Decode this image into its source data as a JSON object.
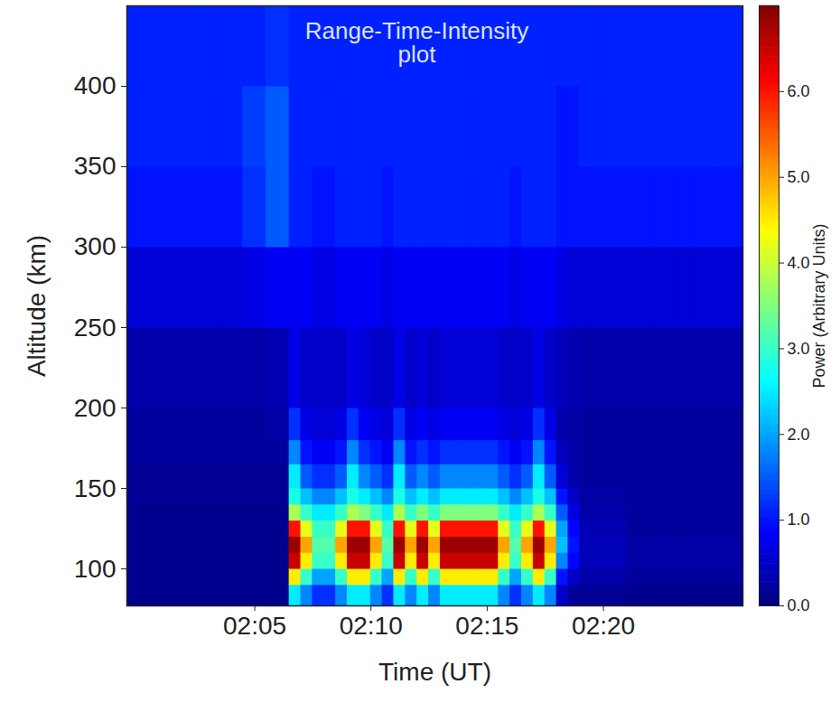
{
  "chart_data": {
    "type": "heatmap",
    "annotation": "Range-Time-Intensity\nplot",
    "x_label": "Time (UT)",
    "y_label": "Altitude (km)",
    "xlim": [
      119.5,
      146
    ],
    "xticks": [
      {
        "value": 125,
        "label": "02:05"
      },
      {
        "value": 130,
        "label": "02:10"
      },
      {
        "value": 135,
        "label": "02:15"
      },
      {
        "value": 140,
        "label": "02:20"
      }
    ],
    "ylim": [
      77,
      450
    ],
    "yticks": [
      100,
      150,
      200,
      250,
      300,
      350,
      400
    ],
    "cells": {
      "x_bins": [
        119.5,
        120.5,
        121.5,
        122.5,
        123.5,
        124.5,
        125.5,
        126.5,
        127,
        127.5,
        128,
        128.5,
        129,
        129.5,
        130,
        130.5,
        131,
        131.5,
        132,
        132.5,
        133,
        133.5,
        134,
        134.5,
        135,
        135.5,
        136,
        136.5,
        137,
        137.5,
        138,
        138.5,
        139,
        140,
        141,
        142,
        143,
        144,
        145,
        146
      ],
      "y_bins": [
        77,
        90,
        100,
        110,
        120,
        130,
        140,
        150,
        165,
        180,
        200,
        250,
        300,
        350,
        400,
        450
      ],
      "values": [
        [
          0.1,
          0.1,
          0.1,
          0.1,
          0.1,
          0.1,
          0.15,
          0.15,
          0.2,
          0.2,
          0.3,
          0.6,
          1.0,
          1.1,
          1.1
        ],
        [
          0.1,
          0.1,
          0.1,
          0.1,
          0.1,
          0.1,
          0.15,
          0.15,
          0.2,
          0.2,
          0.3,
          0.6,
          1.0,
          1.1,
          1.1
        ],
        [
          0.1,
          0.1,
          0.1,
          0.1,
          0.1,
          0.1,
          0.15,
          0.15,
          0.2,
          0.2,
          0.3,
          0.6,
          1.0,
          1.1,
          1.1
        ],
        [
          0.1,
          0.1,
          0.1,
          0.1,
          0.1,
          0.1,
          0.15,
          0.15,
          0.2,
          0.2,
          0.3,
          0.6,
          1.0,
          1.1,
          1.1
        ],
        [
          0.1,
          0.1,
          0.1,
          0.1,
          0.1,
          0.1,
          0.15,
          0.15,
          0.2,
          0.2,
          0.3,
          0.6,
          1.0,
          1.1,
          1.1
        ],
        [
          0.1,
          0.1,
          0.1,
          0.1,
          0.1,
          0.1,
          0.15,
          0.15,
          0.2,
          0.2,
          0.3,
          0.7,
          1.2,
          1.3,
          1.1
        ],
        [
          0.1,
          0.1,
          0.1,
          0.1,
          0.1,
          0.1,
          0.15,
          0.15,
          0.2,
          0.25,
          0.35,
          0.8,
          1.5,
          1.5,
          1.2
        ],
        [
          2.5,
          4.5,
          6.5,
          6.8,
          6,
          3.8,
          2.8,
          2.5,
          1.8,
          1.2,
          0.7,
          0.8,
          1.1,
          1.1,
          1.1
        ],
        [
          1.8,
          3,
          4.5,
          5,
          4.2,
          3,
          2.2,
          1.5,
          1,
          0.7,
          0.5,
          0.8,
          1.1,
          1.1,
          1.1
        ],
        [
          1.2,
          2,
          3,
          3.2,
          3,
          2.5,
          1.8,
          1.2,
          0.8,
          0.6,
          0.5,
          0.7,
          1,
          1.1,
          1.1
        ],
        [
          1.2,
          2,
          3,
          3.2,
          3,
          2.5,
          1.8,
          1.2,
          0.8,
          0.6,
          0.5,
          0.7,
          1,
          1.1,
          1.1
        ],
        [
          1.8,
          3,
          4.5,
          5,
          4.2,
          3,
          2.2,
          1.5,
          1,
          0.7,
          0.5,
          0.8,
          1.1,
          1.1,
          1.1
        ],
        [
          2.5,
          4.5,
          6.5,
          6.8,
          6,
          3.8,
          2.8,
          2.5,
          1.8,
          1.2,
          0.7,
          0.8,
          1.1,
          1.1,
          1.1
        ],
        [
          2.5,
          4.5,
          6.5,
          6.8,
          6,
          3.5,
          2.5,
          1.8,
          1.2,
          0.8,
          0.6,
          0.8,
          1.1,
          1.1,
          1.1
        ],
        [
          1.8,
          3,
          4.5,
          5,
          4.2,
          3,
          2.2,
          1.5,
          1,
          0.7,
          0.5,
          0.8,
          1.1,
          1.1,
          1.1
        ],
        [
          1.2,
          2,
          3,
          3.2,
          3,
          2.5,
          1.8,
          1.2,
          0.8,
          0.6,
          0.5,
          0.7,
          1,
          1.1,
          1.1
        ],
        [
          2.5,
          4.5,
          6.5,
          6.8,
          6,
          3.8,
          2.8,
          2.5,
          1.8,
          1.2,
          0.7,
          0.8,
          1.1,
          1.1,
          1.1
        ],
        [
          1.8,
          3,
          4.5,
          5,
          4.2,
          3,
          2.2,
          1.5,
          1,
          0.7,
          0.5,
          0.8,
          1.1,
          1.1,
          1.1
        ],
        [
          2.5,
          4.5,
          6.5,
          6.8,
          6,
          3.5,
          2.5,
          1.8,
          1.2,
          0.8,
          0.6,
          0.8,
          1.1,
          1.1,
          1.1
        ],
        [
          1.8,
          3,
          4.5,
          5,
          4.2,
          3,
          2.2,
          1.5,
          1,
          0.7,
          0.5,
          0.8,
          1.1,
          1.1,
          1.1
        ],
        [
          2.5,
          4.5,
          6.5,
          6.8,
          6,
          3.5,
          2.5,
          1.8,
          1.2,
          0.8,
          0.6,
          0.8,
          1.1,
          1.1,
          1.1
        ],
        [
          2.5,
          4.5,
          6.5,
          6.8,
          6,
          3.5,
          2.5,
          1.8,
          1.2,
          0.8,
          0.6,
          0.8,
          1.1,
          1.1,
          1.1
        ],
        [
          2.5,
          4.5,
          6.5,
          6.8,
          6,
          3.5,
          2.5,
          1.8,
          1.2,
          0.8,
          0.6,
          0.8,
          1.1,
          1.1,
          1.1
        ],
        [
          2.5,
          4.5,
          6.5,
          6.8,
          6,
          3.5,
          2.5,
          1.8,
          1.2,
          0.8,
          0.6,
          0.8,
          1.1,
          1.1,
          1.1
        ],
        [
          2.5,
          4.5,
          6.5,
          6.8,
          6,
          3.5,
          2.5,
          1.8,
          1.2,
          0.8,
          0.6,
          0.8,
          1.1,
          1.1,
          1.1
        ],
        [
          1.8,
          3,
          4.5,
          5,
          4.2,
          3,
          2.2,
          1.5,
          1,
          0.7,
          0.5,
          0.8,
          1.1,
          1.1,
          1.1
        ],
        [
          1.2,
          2,
          3,
          3.2,
          3,
          2.5,
          1.8,
          1.2,
          0.8,
          0.6,
          0.5,
          0.7,
          1,
          1.1,
          1.1
        ],
        [
          1.8,
          3,
          4.5,
          5,
          4.2,
          3,
          2.2,
          1.5,
          1,
          0.7,
          0.5,
          0.8,
          1.1,
          1.1,
          1.1
        ],
        [
          2.5,
          4.5,
          6.5,
          6.8,
          6,
          3.8,
          2.8,
          2.5,
          1.8,
          1.2,
          0.7,
          0.8,
          1.1,
          1.1,
          1.1
        ],
        [
          1.8,
          3,
          4.5,
          5,
          4.2,
          3,
          2.2,
          1.5,
          1,
          0.7,
          0.5,
          0.8,
          1.1,
          1.1,
          1.1
        ],
        [
          0.5,
          1,
          1.8,
          2.2,
          2,
          1.5,
          1,
          0.6,
          0.4,
          0.3,
          0.4,
          0.7,
          1,
          1,
          1.1
        ],
        [
          0.2,
          0.5,
          0.9,
          1,
          0.9,
          0.7,
          0.5,
          0.3,
          0.3,
          0.25,
          0.35,
          0.6,
          1,
          1,
          1.1
        ],
        [
          0.15,
          0.3,
          0.4,
          0.4,
          0.35,
          0.3,
          0.25,
          0.2,
          0.2,
          0.2,
          0.3,
          0.6,
          1,
          1.1,
          1.1
        ],
        [
          0.15,
          0.3,
          0.4,
          0.4,
          0.35,
          0.3,
          0.25,
          0.2,
          0.2,
          0.2,
          0.3,
          0.6,
          1,
          1.1,
          1.1
        ],
        [
          0.1,
          0.2,
          0.25,
          0.25,
          0.2,
          0.2,
          0.2,
          0.2,
          0.2,
          0.2,
          0.3,
          0.6,
          1,
          1.1,
          1.1
        ],
        [
          0.1,
          0.2,
          0.25,
          0.25,
          0.2,
          0.2,
          0.2,
          0.2,
          0.2,
          0.2,
          0.3,
          0.6,
          1,
          1.1,
          1.1
        ],
        [
          0.1,
          0.2,
          0.25,
          0.25,
          0.2,
          0.2,
          0.2,
          0.2,
          0.2,
          0.2,
          0.3,
          0.6,
          1,
          1.1,
          1.1
        ],
        [
          0.1,
          0.2,
          0.25,
          0.25,
          0.2,
          0.2,
          0.2,
          0.2,
          0.2,
          0.2,
          0.3,
          0.6,
          1,
          1.1,
          1.1
        ],
        [
          0.1,
          0.2,
          0.25,
          0.25,
          0.2,
          0.2,
          0.2,
          0.2,
          0.2,
          0.2,
          0.3,
          0.6,
          1,
          1.1,
          1.1
        ]
      ]
    },
    "color_range": [
      0,
      7
    ],
    "color_ticks": [
      0,
      1,
      2,
      3,
      4,
      5,
      6
    ],
    "color_label": "Power (Arbitrary Units)"
  }
}
